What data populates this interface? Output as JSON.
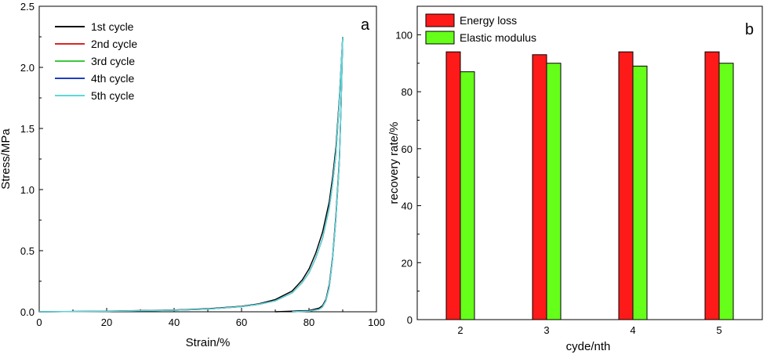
{
  "chart_data": [
    {
      "type": "line",
      "panel_label": "a",
      "xlabel": "Strain/%",
      "ylabel": "Stress/MPa",
      "xlim": [
        0,
        100
      ],
      "ylim": [
        0,
        2.5
      ],
      "xticks": [
        "0",
        "20",
        "40",
        "60",
        "80",
        "100"
      ],
      "yticks": [
        "0.0",
        "0.5",
        "1.0",
        "1.5",
        "2.0",
        "2.5"
      ],
      "grid": false,
      "legend_position": "top-left",
      "series": [
        {
          "name": "1st cycle",
          "color": "#000000",
          "loading": [
            [
              0,
              0
            ],
            [
              20,
              0.005
            ],
            [
              40,
              0.015
            ],
            [
              50,
              0.025
            ],
            [
              60,
              0.045
            ],
            [
              65,
              0.065
            ],
            [
              70,
              0.1
            ],
            [
              75,
              0.17
            ],
            [
              78,
              0.26
            ],
            [
              80,
              0.35
            ],
            [
              82,
              0.48
            ],
            [
              84,
              0.65
            ],
            [
              86,
              0.9
            ],
            [
              87,
              1.1
            ],
            [
              88,
              1.35
            ],
            [
              89,
              1.75
            ],
            [
              90,
              2.25
            ]
          ],
          "unloading": [
            [
              90,
              2.25
            ],
            [
              89.5,
              1.7
            ],
            [
              89,
              1.25
            ],
            [
              88,
              0.8
            ],
            [
              87,
              0.45
            ],
            [
              86,
              0.22
            ],
            [
              85,
              0.1
            ],
            [
              84,
              0.05
            ],
            [
              83,
              0.03
            ],
            [
              80,
              0.01
            ],
            [
              75,
              0.005
            ],
            [
              70,
              0
            ]
          ]
        },
        {
          "name": "2nd cycle",
          "color": "#d62728",
          "loading": [
            [
              0,
              0
            ],
            [
              20,
              0.004
            ],
            [
              40,
              0.013
            ],
            [
              50,
              0.022
            ],
            [
              60,
              0.042
            ],
            [
              65,
              0.06
            ],
            [
              70,
              0.09
            ],
            [
              75,
              0.155
            ],
            [
              78,
              0.24
            ],
            [
              80,
              0.32
            ],
            [
              82,
              0.44
            ],
            [
              84,
              0.6
            ],
            [
              86,
              0.85
            ],
            [
              87,
              1.05
            ],
            [
              88,
              1.3
            ],
            [
              89,
              1.72
            ],
            [
              90,
              2.25
            ]
          ],
          "unloading": [
            [
              90,
              2.25
            ],
            [
              89.5,
              1.68
            ],
            [
              89,
              1.22
            ],
            [
              88,
              0.77
            ],
            [
              87,
              0.43
            ],
            [
              86,
              0.2
            ],
            [
              85,
              0.09
            ],
            [
              84,
              0.04
            ],
            [
              83,
              0.02
            ],
            [
              80,
              0.005
            ],
            [
              75,
              0
            ]
          ]
        },
        {
          "name": "3rd cycle",
          "color": "#3cc93c",
          "loading": [
            [
              0,
              0
            ],
            [
              20,
              0.004
            ],
            [
              40,
              0.013
            ],
            [
              50,
              0.022
            ],
            [
              60,
              0.042
            ],
            [
              65,
              0.06
            ],
            [
              70,
              0.09
            ],
            [
              75,
              0.155
            ],
            [
              78,
              0.24
            ],
            [
              80,
              0.32
            ],
            [
              82,
              0.44
            ],
            [
              84,
              0.6
            ],
            [
              86,
              0.85
            ],
            [
              87,
              1.05
            ],
            [
              88,
              1.3
            ],
            [
              89,
              1.72
            ],
            [
              90,
              2.25
            ]
          ],
          "unloading": [
            [
              90,
              2.25
            ],
            [
              89.5,
              1.68
            ],
            [
              89,
              1.22
            ],
            [
              88,
              0.77
            ],
            [
              87,
              0.43
            ],
            [
              86,
              0.2
            ],
            [
              85,
              0.09
            ],
            [
              84,
              0.04
            ],
            [
              83,
              0.02
            ],
            [
              80,
              0.005
            ],
            [
              75,
              0
            ]
          ]
        },
        {
          "name": "4th cycle",
          "color": "#1f3fbf",
          "loading": [
            [
              0,
              0
            ],
            [
              20,
              0.004
            ],
            [
              40,
              0.013
            ],
            [
              50,
              0.022
            ],
            [
              60,
              0.042
            ],
            [
              65,
              0.06
            ],
            [
              70,
              0.09
            ],
            [
              75,
              0.155
            ],
            [
              78,
              0.24
            ],
            [
              80,
              0.32
            ],
            [
              82,
              0.44
            ],
            [
              84,
              0.6
            ],
            [
              86,
              0.85
            ],
            [
              87,
              1.05
            ],
            [
              88,
              1.3
            ],
            [
              89,
              1.72
            ],
            [
              90,
              2.25
            ]
          ],
          "unloading": [
            [
              90,
              2.25
            ],
            [
              89.5,
              1.68
            ],
            [
              89,
              1.22
            ],
            [
              88,
              0.77
            ],
            [
              87,
              0.43
            ],
            [
              86,
              0.2
            ],
            [
              85,
              0.09
            ],
            [
              84,
              0.04
            ],
            [
              83,
              0.02
            ],
            [
              80,
              0.005
            ],
            [
              75,
              0
            ]
          ]
        },
        {
          "name": "5th cycle",
          "color": "#5fd8d8",
          "loading": [
            [
              0,
              0
            ],
            [
              20,
              0.004
            ],
            [
              40,
              0.013
            ],
            [
              50,
              0.022
            ],
            [
              60,
              0.042
            ],
            [
              65,
              0.06
            ],
            [
              70,
              0.09
            ],
            [
              75,
              0.155
            ],
            [
              78,
              0.24
            ],
            [
              80,
              0.32
            ],
            [
              82,
              0.44
            ],
            [
              84,
              0.6
            ],
            [
              86,
              0.85
            ],
            [
              87,
              1.05
            ],
            [
              88,
              1.3
            ],
            [
              89,
              1.72
            ],
            [
              90,
              2.25
            ]
          ],
          "unloading": [
            [
              90,
              2.25
            ],
            [
              89.5,
              1.68
            ],
            [
              89,
              1.22
            ],
            [
              88,
              0.77
            ],
            [
              87,
              0.43
            ],
            [
              86,
              0.2
            ],
            [
              85,
              0.09
            ],
            [
              84,
              0.04
            ],
            [
              83,
              0.02
            ],
            [
              80,
              0.005
            ],
            [
              75,
              0
            ]
          ]
        }
      ]
    },
    {
      "type": "bar",
      "panel_label": "b",
      "xlabel": "cyde/nth",
      "ylabel": "recovery rate/%",
      "ylim": [
        0,
        110
      ],
      "yticks": [
        "0",
        "20",
        "40",
        "60",
        "80",
        "100"
      ],
      "categories": [
        "2",
        "3",
        "4",
        "5"
      ],
      "grid": false,
      "legend_position": "top-left",
      "series": [
        {
          "name": "Energy loss",
          "color": "#ff1a1a",
          "values": [
            94,
            93,
            94,
            94
          ]
        },
        {
          "name": "Elastic modulus",
          "color": "#66ff1a",
          "values": [
            87,
            90,
            89,
            90
          ]
        }
      ]
    }
  ]
}
